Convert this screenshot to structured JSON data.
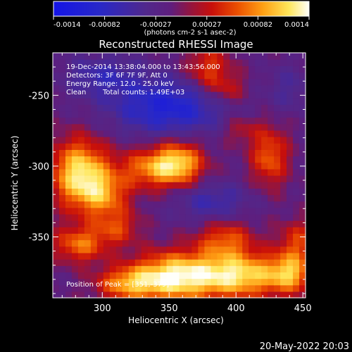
{
  "chart_data": {
    "type": "heatmap",
    "title": "Reconstructed RHESSI Image",
    "xlabel": "Heliocentric X (arcsec)",
    "ylabel": "Heliocentric Y (arcsec)",
    "x_ticks": [
      "300",
      "350",
      "400",
      "450"
    ],
    "y_ticks": [
      "-250",
      "-300",
      "-350"
    ],
    "xlim": [
      263,
      452
    ],
    "ylim": [
      -393,
      -220
    ],
    "colorbar": {
      "ticks": [
        "-0.0014",
        "-0.00082",
        "-0.00027",
        "0.00027",
        "0.00082",
        "0.0014"
      ],
      "unit_label": "(photons cm-2 s-1 asec-2)",
      "range": [
        -0.0014,
        0.0014
      ]
    },
    "info": {
      "time": "19-Dec-2014 13:38:04.000 to 13:43:56.000",
      "detectors": "Detectors: 3F 6F 7F 9F, Att 0",
      "energy": "Energy Range: 12.0 - 25.0 keV",
      "method": "Clean",
      "counts": "Total counts: 1.49E+03"
    },
    "peak_label": "Position of Peak = [351,-379]",
    "peak": [
      351,
      -379
    ],
    "sources": [
      {
        "x": 283,
        "y": -305,
        "amp": 0.00135,
        "sx": 15,
        "sy": 17
      },
      {
        "x": 302,
        "y": -320,
        "amp": 0.00075,
        "sx": 13,
        "sy": 11
      },
      {
        "x": 338,
        "y": -301,
        "amp": 0.0009,
        "sx": 18,
        "sy": 10
      },
      {
        "x": 358,
        "y": -297,
        "amp": 0.00095,
        "sx": 13,
        "sy": 11
      },
      {
        "x": 425,
        "y": -293,
        "amp": 0.0008,
        "sx": 10,
        "sy": 15
      },
      {
        "x": 379,
        "y": -232,
        "amp": 0.0007,
        "sx": 12,
        "sy": 12
      },
      {
        "x": 353,
        "y": -378,
        "amp": 0.0014,
        "sx": 22,
        "sy": 12
      },
      {
        "x": 403,
        "y": -377,
        "amp": 0.0013,
        "sx": 24,
        "sy": 11
      },
      {
        "x": 318,
        "y": -383,
        "amp": 0.00085,
        "sx": 16,
        "sy": 8
      },
      {
        "x": 283,
        "y": -355,
        "amp": 0.00085,
        "sx": 14,
        "sy": 9
      },
      {
        "x": 311,
        "y": -343,
        "amp": 0.0006,
        "sx": 12,
        "sy": 9
      },
      {
        "x": 392,
        "y": -352,
        "amp": 0.00075,
        "sx": 15,
        "sy": 10
      },
      {
        "x": 446,
        "y": -352,
        "amp": 0.0006,
        "sx": 10,
        "sy": 10
      },
      {
        "x": 441,
        "y": -375,
        "amp": 0.0009,
        "sx": 11,
        "sy": 10
      },
      {
        "x": 395,
        "y": -246,
        "amp": 0.00045,
        "sx": 10,
        "sy": 8
      },
      {
        "x": 403,
        "y": -274,
        "amp": 0.0004,
        "sx": 10,
        "sy": 7
      }
    ],
    "negative_regions": [
      {
        "x": 350,
        "y": -258,
        "amp": -0.0009,
        "sx": 30,
        "sy": 14
      },
      {
        "x": 300,
        "y": -236,
        "amp": -0.0005,
        "sx": 20,
        "sy": 10
      },
      {
        "x": 382,
        "y": -325,
        "amp": -0.0005,
        "sx": 20,
        "sy": 10
      },
      {
        "x": 440,
        "y": -245,
        "amp": -0.0003,
        "sx": 12,
        "sy": 12
      }
    ]
  },
  "footer": {
    "date": "20-May-2022 20:03"
  }
}
